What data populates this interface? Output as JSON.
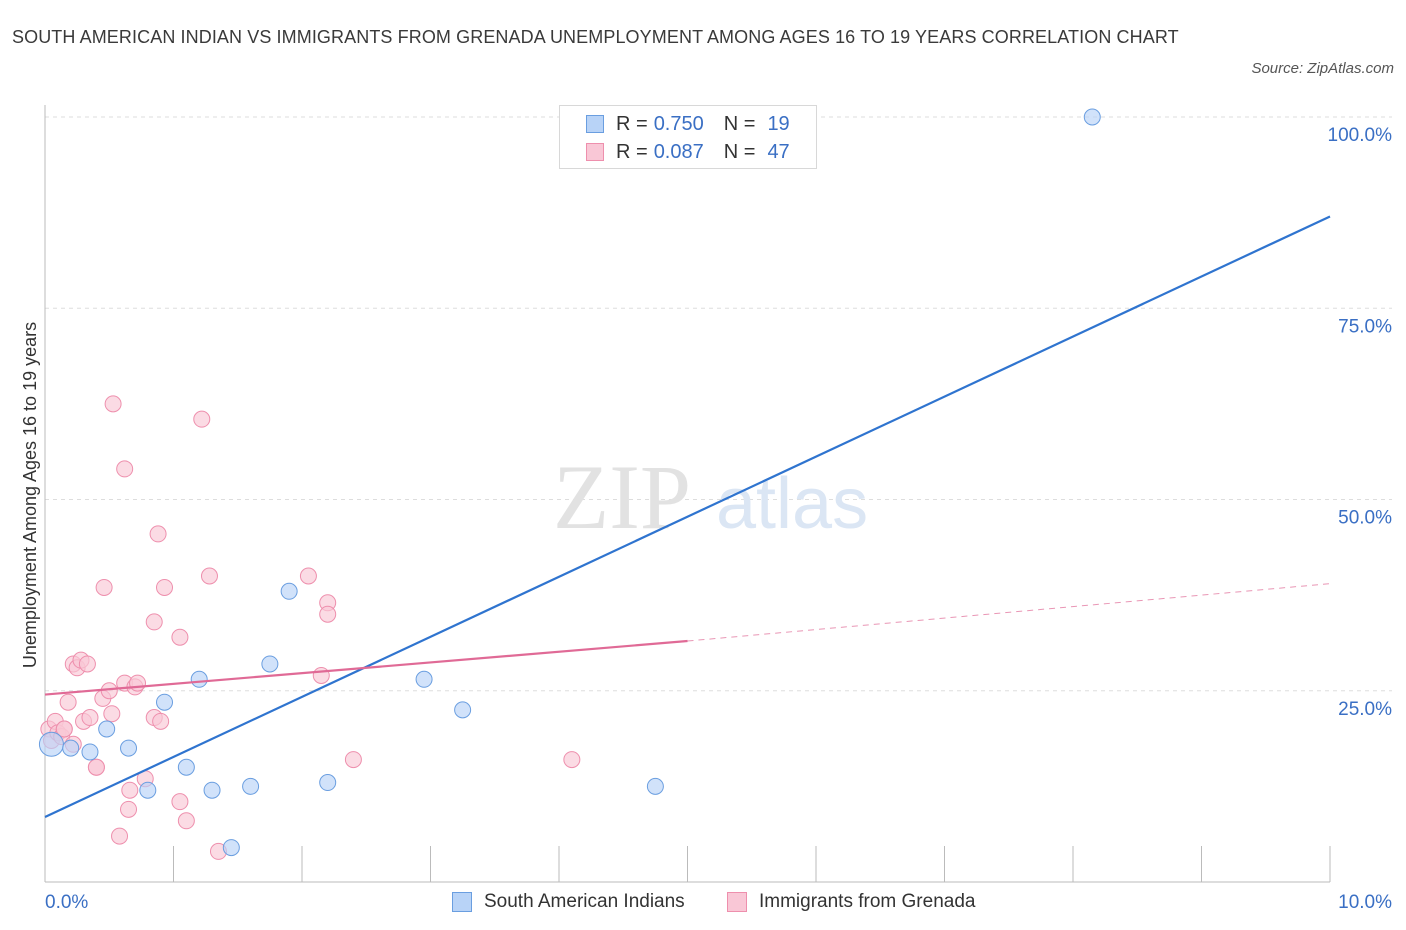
{
  "header": {
    "title": "SOUTH AMERICAN INDIAN VS IMMIGRANTS FROM GRENADA UNEMPLOYMENT AMONG AGES 16 TO 19 YEARS CORRELATION CHART",
    "source": "Source: ZipAtlas.com"
  },
  "legend": {
    "rows": [
      {
        "r_label": "R =",
        "r_value": "0.750",
        "n_label": "N =",
        "n_value": "19"
      },
      {
        "r_label": "R =",
        "r_value": "0.087",
        "n_label": "N =",
        "n_value": "47"
      }
    ],
    "bottom": [
      "South American Indians",
      "Immigrants from Grenada"
    ]
  },
  "watermark": {
    "zip": "ZIP",
    "atlas": "atlas"
  },
  "colors": {
    "blue_fill": "#b8d3f7",
    "blue_stroke": "#6a9ee0",
    "blue_line": "#2f74cf",
    "pink_fill": "#f9c7d6",
    "pink_stroke": "#ee8fad",
    "pink_line": "#e06a96",
    "axis_text": "#3a6fc4",
    "grid": "#dddddd"
  },
  "chart_data": {
    "type": "scatter",
    "title": "SOUTH AMERICAN INDIAN VS IMMIGRANTS FROM GRENADA UNEMPLOYMENT AMONG AGES 16 TO 19 YEARS CORRELATION CHART",
    "xlabel": "",
    "ylabel": "Unemployment Among Ages 16 to 19 years",
    "xlim": [
      0,
      10
    ],
    "ylim": [
      0,
      100
    ],
    "x_tick_labels": [
      "0.0%",
      "10.0%"
    ],
    "y_tick_labels": [
      "25.0%",
      "50.0%",
      "75.0%",
      "100.0%"
    ],
    "y_ticks": [
      25,
      50,
      75,
      100
    ],
    "series": [
      {
        "name": "South American Indians",
        "R": 0.75,
        "N": 19,
        "points": [
          [
            0.05,
            18.0
          ],
          [
            0.2,
            17.5
          ],
          [
            0.35,
            17.0
          ],
          [
            0.48,
            20.0
          ],
          [
            0.65,
            17.5
          ],
          [
            0.8,
            12.0
          ],
          [
            0.93,
            23.5
          ],
          [
            1.1,
            15.0
          ],
          [
            1.2,
            26.5
          ],
          [
            1.3,
            12.0
          ],
          [
            1.45,
            4.5
          ],
          [
            1.6,
            12.5
          ],
          [
            1.75,
            28.5
          ],
          [
            1.9,
            38.0
          ],
          [
            2.2,
            13.0
          ],
          [
            2.95,
            26.5
          ],
          [
            3.25,
            22.5
          ],
          [
            4.75,
            12.5
          ],
          [
            8.15,
            100.0
          ]
        ],
        "trend": {
          "x0": 0.0,
          "y0": 8.5,
          "x1": 10.0,
          "y1": 87.0
        }
      },
      {
        "name": "Immigrants from Grenada",
        "R": 0.087,
        "N": 47,
        "points": [
          [
            0.03,
            20.0
          ],
          [
            0.05,
            18.5
          ],
          [
            0.08,
            21.0
          ],
          [
            0.1,
            19.5
          ],
          [
            0.13,
            19.0
          ],
          [
            0.15,
            20.0
          ],
          [
            0.18,
            23.5
          ],
          [
            0.22,
            18.0
          ],
          [
            0.22,
            28.5
          ],
          [
            0.25,
            28.0
          ],
          [
            0.28,
            29.0
          ],
          [
            0.3,
            21.0
          ],
          [
            0.33,
            28.5
          ],
          [
            0.35,
            21.5
          ],
          [
            0.4,
            15.0
          ],
          [
            0.45,
            24.0
          ],
          [
            0.46,
            38.5
          ],
          [
            0.5,
            25.0
          ],
          [
            0.52,
            22.0
          ],
          [
            0.53,
            62.5
          ],
          [
            0.58,
            6.0
          ],
          [
            0.62,
            26.0
          ],
          [
            0.62,
            54.0
          ],
          [
            0.65,
            9.5
          ],
          [
            0.66,
            12.0
          ],
          [
            0.7,
            25.5
          ],
          [
            0.72,
            26.0
          ],
          [
            0.78,
            13.5
          ],
          [
            0.85,
            21.5
          ],
          [
            0.85,
            34.0
          ],
          [
            0.88,
            45.5
          ],
          [
            0.9,
            21.0
          ],
          [
            0.93,
            38.5
          ],
          [
            1.05,
            10.5
          ],
          [
            1.05,
            32.0
          ],
          [
            1.1,
            8.0
          ],
          [
            1.22,
            60.5
          ],
          [
            1.28,
            40.0
          ],
          [
            1.35,
            4.0
          ],
          [
            2.05,
            40.0
          ],
          [
            2.15,
            27.0
          ],
          [
            2.2,
            36.5
          ],
          [
            2.2,
            35.0
          ],
          [
            2.4,
            16.0
          ],
          [
            4.1,
            16.0
          ],
          [
            0.4,
            15.0
          ],
          [
            0.15,
            20.0
          ]
        ],
        "trend": {
          "x0": 0.0,
          "y0": 24.5,
          "x1": 5.0,
          "y1": 31.5,
          "dash_x1": 10.0,
          "dash_y1": 39.0
        }
      }
    ]
  }
}
